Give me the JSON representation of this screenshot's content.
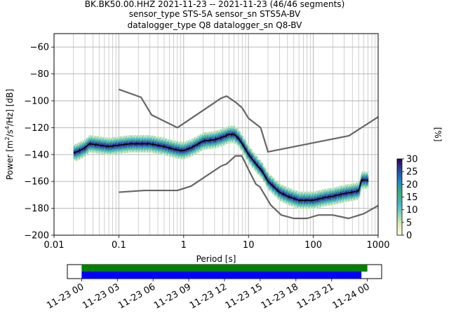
{
  "title_lines": [
    "BK.BK50.00.HHZ   2021-11-23 -- 2021-11-23  (46/46 segments)",
    "sensor_type STS-5A sensor_sn STS5A-BV",
    "datalogger_type Q8 datalogger_sn Q8-BV"
  ],
  "chart_data": {
    "type": "heatmap",
    "subtype": "PPSD probabilistic power spectral density",
    "xlabel": "Period [s]",
    "x_scale": "log",
    "xlim": [
      0.01,
      1000
    ],
    "xticks": [
      0.01,
      0.1,
      1,
      10,
      100,
      1000
    ],
    "xtick_labels": [
      "0.01",
      "0.1",
      "1",
      "10",
      "100",
      "1000"
    ],
    "ylabel_parts": [
      "Power [m",
      "2",
      "/s",
      "4",
      "/Hz] [dB]"
    ],
    "ylim": [
      -200,
      -50
    ],
    "yticks": [
      -200,
      -180,
      -160,
      -140,
      -120,
      -100,
      -80,
      -60
    ],
    "ytick_labels": [
      "−200",
      "−180",
      "−160",
      "−140",
      "−120",
      "−100",
      "−80",
      "−60"
    ],
    "grid": true,
    "colorbar": {
      "label": "[%]",
      "range": [
        0,
        30
      ],
      "ticks": [
        0,
        5,
        10,
        15,
        20,
        25,
        30
      ],
      "tick_labels": [
        "0",
        "5",
        "10",
        "15",
        "20",
        "25",
        "30"
      ],
      "colormap": [
        "#ffffd9",
        "#d6efb3",
        "#7fcdbb",
        "#41b6c4",
        "#41ae76",
        "#1d91c0",
        "#225ea8",
        "#253494",
        "#2d004b"
      ]
    },
    "series": [
      {
        "name": "",
        "role": "mean",
        "color": "#000000",
        "points": [
          [
            0.02,
            -139
          ],
          [
            0.025,
            -137
          ],
          [
            0.03,
            -135
          ],
          [
            0.035,
            -132
          ],
          [
            0.05,
            -133
          ],
          [
            0.07,
            -134
          ],
          [
            0.1,
            -133
          ],
          [
            0.15,
            -132
          ],
          [
            0.2,
            -132
          ],
          [
            0.3,
            -132
          ],
          [
            0.5,
            -134
          ],
          [
            0.7,
            -136
          ],
          [
            0.9,
            -137
          ],
          [
            1,
            -137
          ],
          [
            1.3,
            -135
          ],
          [
            2,
            -130
          ],
          [
            3,
            -129
          ],
          [
            4,
            -127
          ],
          [
            5,
            -125
          ],
          [
            6,
            -125
          ],
          [
            7,
            -128
          ],
          [
            8,
            -132
          ],
          [
            10,
            -140
          ],
          [
            13,
            -147
          ],
          [
            16,
            -152
          ],
          [
            20,
            -160
          ],
          [
            30,
            -168
          ],
          [
            40,
            -171
          ],
          [
            60,
            -174
          ],
          [
            100,
            -174
          ],
          [
            150,
            -172
          ],
          [
            200,
            -171
          ],
          [
            300,
            -169
          ],
          [
            400,
            -168
          ],
          [
            500,
            -167
          ],
          [
            550,
            -159
          ],
          [
            700,
            -159
          ]
        ]
      },
      {
        "name": "",
        "role": "NHNM",
        "color": "#666666",
        "points": [
          [
            0.1,
            -91.5
          ],
          [
            0.22,
            -97.4
          ],
          [
            0.32,
            -110.5
          ],
          [
            0.8,
            -120
          ],
          [
            3.8,
            -98
          ],
          [
            4.6,
            -96.5
          ],
          [
            6.3,
            -101
          ],
          [
            7.9,
            -105
          ],
          [
            10,
            -113
          ],
          [
            15.4,
            -120
          ],
          [
            20,
            -138
          ],
          [
            354.8,
            -126
          ],
          [
            1000,
            -112
          ]
        ]
      },
      {
        "name": "",
        "role": "NLNM",
        "color": "#666666",
        "points": [
          [
            0.1,
            -168
          ],
          [
            0.25,
            -166.7
          ],
          [
            0.8,
            -166.7
          ],
          [
            1.3,
            -163.5
          ],
          [
            3.8,
            -148.5
          ],
          [
            4.6,
            -147
          ],
          [
            6.3,
            -141
          ],
          [
            7.9,
            -141
          ],
          [
            10.2,
            -152
          ],
          [
            13,
            -162
          ],
          [
            15,
            -164
          ],
          [
            22,
            -177.5
          ],
          [
            32,
            -185
          ],
          [
            50,
            -187.5
          ],
          [
            80,
            -187.5
          ],
          [
            120,
            -185
          ],
          [
            200,
            -185
          ],
          [
            350,
            -187.5
          ],
          [
            600,
            -184
          ],
          [
            1000,
            -178
          ]
        ]
      }
    ],
    "heatmap_band": {
      "description": "histogram cells clustered around the mean curve",
      "half_width_db": 4
    }
  },
  "timeline": {
    "xtick_labels": [
      "11-23 00",
      "11-23 03",
      "11-23 06",
      "11-23 09",
      "11-23 12",
      "11-23 15",
      "11-23 18",
      "11-23 21",
      "11-24 00"
    ],
    "xtick_hours": [
      0,
      3,
      6,
      9,
      12,
      15,
      18,
      21,
      24
    ],
    "xlim_hours": [
      -1.2,
      25.2
    ],
    "bars": [
      {
        "color": "#008000",
        "start_hour": 0,
        "end_hour": 24.0
      },
      {
        "color": "#0000ff",
        "start_hour": 0,
        "end_hour": 23.5
      }
    ]
  }
}
